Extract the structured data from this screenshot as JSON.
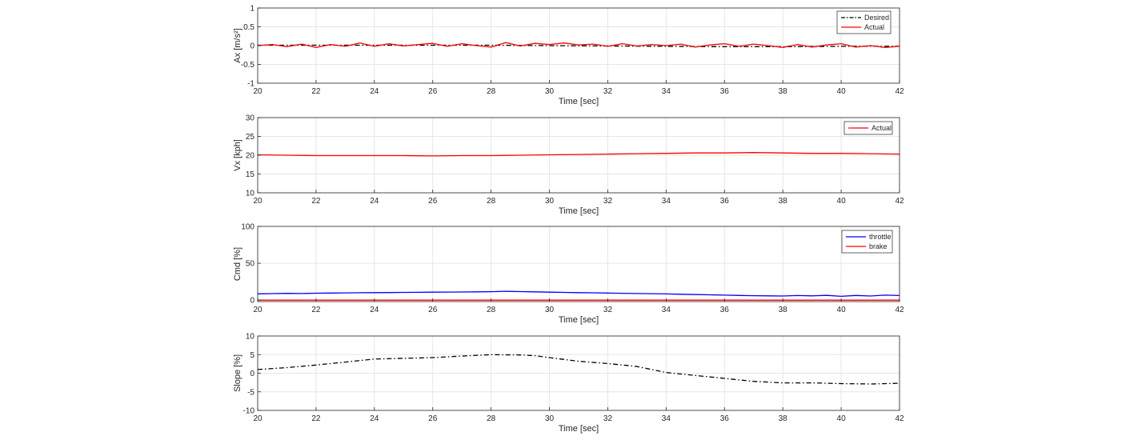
{
  "chart_data": [
    {
      "type": "line",
      "xlabel": "Time [sec]",
      "ylabel": "Ax [m/s²]",
      "xlim": [
        20,
        42
      ],
      "ylim": [
        -1,
        1
      ],
      "xticks": [
        20,
        22,
        24,
        26,
        28,
        30,
        32,
        34,
        36,
        38,
        40,
        42
      ],
      "yticks": [
        -1,
        -0.5,
        0,
        0.5,
        1
      ],
      "grid": true,
      "legend": "top-right",
      "series": [
        {
          "name": "Desired",
          "color": "#000000",
          "style": "dashdot",
          "x": [
            20,
            22,
            24,
            26,
            28,
            30,
            32,
            34,
            36,
            38,
            40,
            42
          ],
          "y": [
            0.01,
            0.01,
            0.01,
            0.01,
            0.01,
            0.0,
            -0.01,
            -0.02,
            -0.03,
            -0.03,
            -0.02,
            -0.02
          ]
        },
        {
          "name": "Actual",
          "color": "#ff0000",
          "style": "solid",
          "x": [
            20,
            20.5,
            21,
            21.5,
            22,
            22.5,
            23,
            23.5,
            24,
            24.5,
            25,
            25.5,
            26,
            26.5,
            27,
            27.5,
            28,
            28.5,
            29,
            29.5,
            30,
            30.5,
            31,
            31.5,
            32,
            32.5,
            33,
            33.5,
            34,
            34.5,
            35,
            35.5,
            36,
            36.5,
            37,
            37.5,
            38,
            38.5,
            39,
            39.5,
            40,
            40.5,
            41,
            41.5,
            42
          ],
          "y": [
            0.0,
            0.03,
            -0.03,
            0.04,
            -0.05,
            0.03,
            -0.02,
            0.07,
            -0.02,
            0.05,
            -0.01,
            0.03,
            0.06,
            -0.02,
            0.05,
            0.0,
            -0.04,
            0.08,
            -0.01,
            0.06,
            0.03,
            0.07,
            0.02,
            0.04,
            -0.02,
            0.05,
            -0.01,
            0.03,
            0.0,
            0.04,
            -0.04,
            0.02,
            0.05,
            -0.02,
            0.04,
            0.0,
            -0.05,
            0.03,
            -0.04,
            0.02,
            0.05,
            -0.04,
            0.0,
            -0.05,
            -0.02
          ]
        }
      ]
    },
    {
      "type": "line",
      "xlabel": "Time [sec]",
      "ylabel": "Vx [kph]",
      "xlim": [
        20,
        42
      ],
      "ylim": [
        10,
        30
      ],
      "xticks": [
        20,
        22,
        24,
        26,
        28,
        30,
        32,
        34,
        36,
        38,
        40,
        42
      ],
      "yticks": [
        10,
        15,
        20,
        25,
        30
      ],
      "grid": true,
      "legend": "top-right",
      "series": [
        {
          "name": "Actual",
          "color": "#ff0000",
          "style": "solid",
          "x": [
            20,
            21,
            22,
            23,
            24,
            25,
            26,
            27,
            28,
            29,
            30,
            31,
            32,
            33,
            34,
            35,
            36,
            37,
            38,
            39,
            40,
            41,
            42
          ],
          "y": [
            20.1,
            20.0,
            19.9,
            19.9,
            19.9,
            19.9,
            19.8,
            19.9,
            19.9,
            20.0,
            20.1,
            20.2,
            20.3,
            20.4,
            20.5,
            20.6,
            20.6,
            20.7,
            20.6,
            20.5,
            20.5,
            20.4,
            20.3
          ]
        }
      ]
    },
    {
      "type": "line",
      "xlabel": "Time [sec]",
      "ylabel": "Cmd [%]",
      "xlim": [
        20,
        42
      ],
      "ylim": [
        -2,
        100
      ],
      "xticks": [
        20,
        22,
        24,
        26,
        28,
        30,
        32,
        34,
        36,
        38,
        40,
        42
      ],
      "yticks": [
        0,
        50,
        100
      ],
      "grid": true,
      "legend": "top-right",
      "series": [
        {
          "name": "throttle",
          "color": "#0000ff",
          "style": "solid",
          "x": [
            20,
            20.5,
            21,
            21.5,
            22,
            22.5,
            23,
            23.5,
            24,
            24.5,
            25,
            25.5,
            26,
            26.5,
            27,
            27.5,
            28,
            28.5,
            29,
            29.5,
            30,
            30.5,
            31,
            31.5,
            32,
            32.5,
            33,
            33.5,
            34,
            34.5,
            35,
            35.5,
            36,
            36.5,
            37,
            37.5,
            38,
            38.5,
            39,
            39.5,
            40,
            40.5,
            41,
            41.5,
            42
          ],
          "y": [
            8.5,
            8.8,
            9.2,
            9.0,
            9.4,
            9.6,
            9.8,
            10.0,
            10.1,
            10.3,
            10.5,
            10.6,
            10.8,
            10.9,
            11.0,
            11.2,
            11.5,
            12.0,
            11.6,
            11.2,
            10.8,
            10.5,
            10.2,
            9.9,
            9.6,
            9.3,
            9.0,
            8.7,
            8.4,
            8.0,
            7.6,
            7.2,
            6.8,
            6.4,
            6.0,
            5.8,
            5.6,
            6.2,
            5.8,
            6.5,
            5.2,
            6.4,
            5.6,
            6.8,
            6.2
          ]
        },
        {
          "name": "brake",
          "color": "#ff0000",
          "style": "solid",
          "x": [
            20,
            42
          ],
          "y": [
            0,
            0
          ]
        }
      ]
    },
    {
      "type": "line",
      "xlabel": "Time [sec]",
      "ylabel": "Slope [%]",
      "xlim": [
        20,
        42
      ],
      "ylim": [
        -10,
        10
      ],
      "xticks": [
        20,
        22,
        24,
        26,
        28,
        30,
        32,
        34,
        36,
        38,
        40,
        42
      ],
      "yticks": [
        -10,
        -5,
        0,
        5,
        10
      ],
      "grid": true,
      "legend": "none",
      "series": [
        {
          "color": "#000000",
          "style": "dashdot",
          "x": [
            20,
            21,
            22,
            23,
            24,
            25,
            26,
            27,
            28,
            29,
            29.5,
            30,
            31,
            32,
            33,
            34,
            35,
            36,
            37,
            38,
            39,
            40,
            41,
            42
          ],
          "y": [
            1.0,
            1.5,
            2.2,
            3.0,
            3.8,
            4.0,
            4.2,
            4.6,
            5.0,
            4.9,
            4.7,
            4.2,
            3.2,
            2.6,
            1.8,
            0.2,
            -0.6,
            -1.4,
            -2.2,
            -2.6,
            -2.6,
            -2.8,
            -2.9,
            -2.7
          ]
        }
      ]
    }
  ]
}
